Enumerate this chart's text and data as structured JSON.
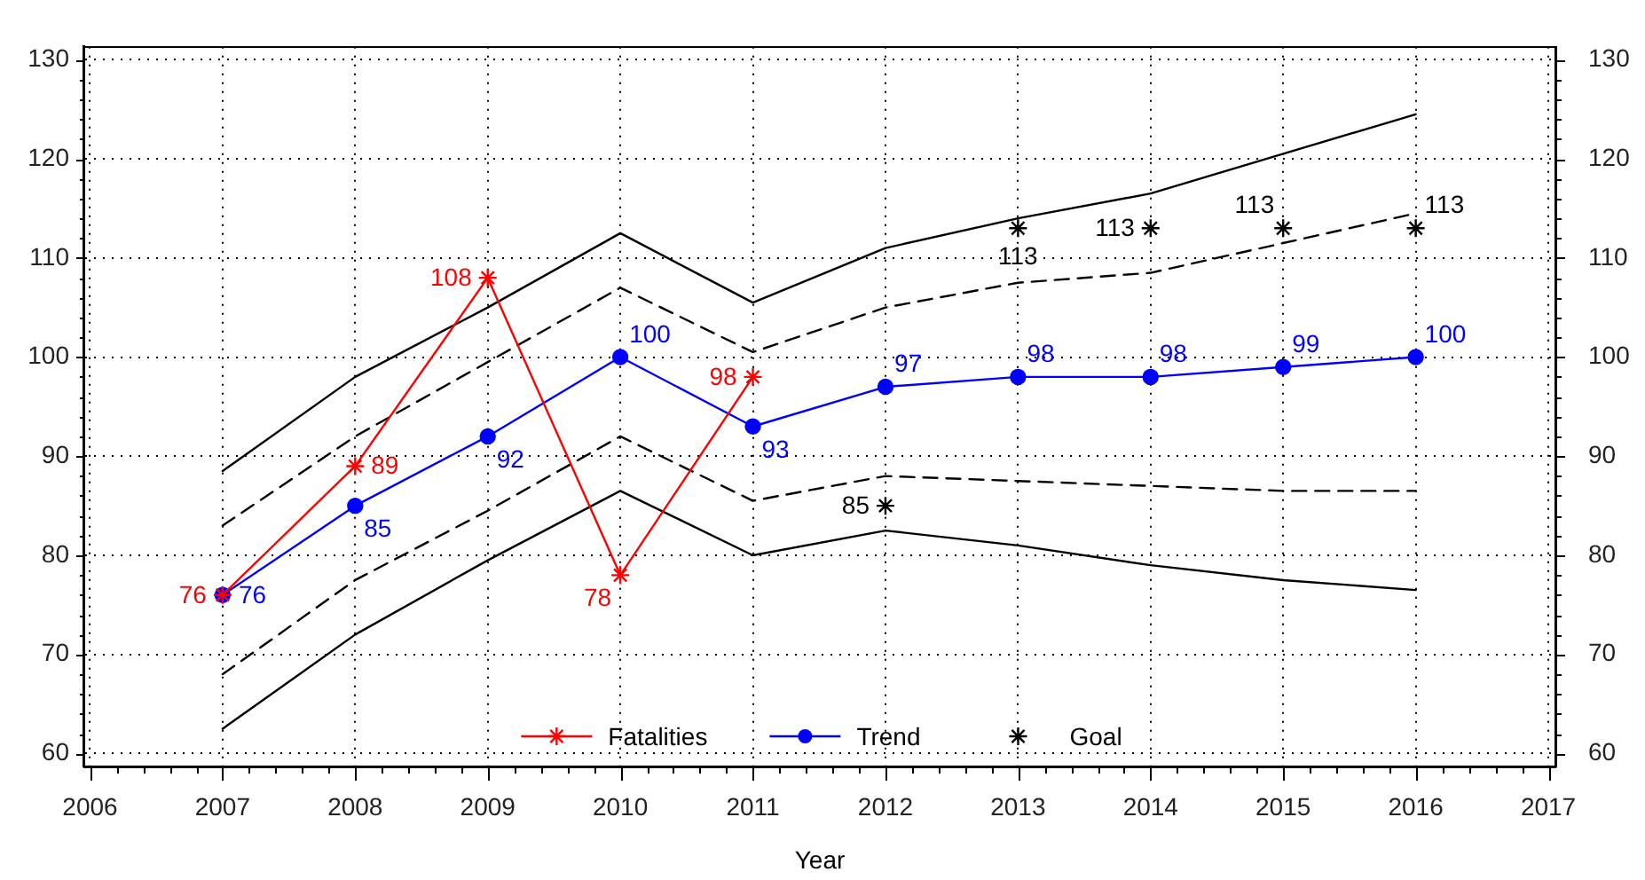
{
  "chart_data": {
    "type": "line",
    "xlabel": "Year",
    "xlim": [
      2005.95,
      2017.06
    ],
    "xticks": [
      2006,
      {
        "value": 2006.2,
        "label": null
      },
      {
        "value": 2006.4,
        "label": null
      },
      {
        "value": 2006.6,
        "label": null
      },
      {
        "value": 2006.8,
        "label": null
      },
      2007,
      {
        "value": 2007.2,
        "label": null
      },
      {
        "value": 2007.4,
        "label": null
      },
      {
        "value": 2007.6,
        "label": null
      },
      {
        "value": 2007.8,
        "label": null
      },
      2008,
      {
        "value": 2008.2,
        "label": null
      },
      {
        "value": 2008.4,
        "label": null
      },
      {
        "value": 2008.6,
        "label": null
      },
      {
        "value": 2008.8,
        "label": null
      },
      2009,
      {
        "value": 2009.2,
        "label": null
      },
      {
        "value": 2009.4,
        "label": null
      },
      {
        "value": 2009.6,
        "label": null
      },
      {
        "value": 2009.8,
        "label": null
      },
      2010,
      {
        "value": 2010.2,
        "label": null
      },
      {
        "value": 2010.4,
        "label": null
      },
      {
        "value": 2010.6,
        "label": null
      },
      {
        "value": 2010.8,
        "label": null
      },
      2011,
      {
        "value": 2011.2,
        "label": null
      },
      {
        "value": 2011.4,
        "label": null
      },
      {
        "value": 2011.6,
        "label": null
      },
      {
        "value": 2011.8,
        "label": null
      },
      2012,
      {
        "value": 2012.2,
        "label": null
      },
      {
        "value": 2012.4,
        "label": null
      },
      {
        "value": 2012.6,
        "label": null
      },
      {
        "value": 2012.8,
        "label": null
      },
      2013,
      {
        "value": 2013.2,
        "label": null
      },
      {
        "value": 2013.4,
        "label": null
      },
      {
        "value": 2013.6,
        "label": null
      },
      {
        "value": 2013.8,
        "label": null
      },
      2014,
      {
        "value": 2014.2,
        "label": null
      },
      {
        "value": 2014.4,
        "label": null
      },
      {
        "value": 2014.6,
        "label": null
      },
      {
        "value": 2014.8,
        "label": null
      },
      2015,
      {
        "value": 2015.2,
        "label": null
      },
      {
        "value": 2015.4,
        "label": null
      },
      {
        "value": 2015.6,
        "label": null
      },
      {
        "value": 2015.8,
        "label": null
      },
      2016,
      {
        "value": 2016.2,
        "label": null
      },
      {
        "value": 2016.4,
        "label": null
      },
      {
        "value": 2016.6,
        "label": null
      },
      {
        "value": 2016.8,
        "label": null
      },
      2017
    ],
    "ylim": [
      58.7,
      131.3
    ],
    "yticks": [
      60,
      {
        "value": 62,
        "label": null
      },
      {
        "value": 64,
        "label": null
      },
      {
        "value": 66,
        "label": null
      },
      {
        "value": 68,
        "label": null
      },
      70,
      {
        "value": 72,
        "label": null
      },
      {
        "value": 74,
        "label": null
      },
      {
        "value": 76,
        "label": null
      },
      {
        "value": 78,
        "label": null
      },
      80,
      {
        "value": 82,
        "label": null
      },
      {
        "value": 84,
        "label": null
      },
      {
        "value": 86,
        "label": null
      },
      {
        "value": 88,
        "label": null
      },
      90,
      {
        "value": 92,
        "label": null
      },
      {
        "value": 94,
        "label": null
      },
      {
        "value": 96,
        "label": null
      },
      {
        "value": 98,
        "label": null
      },
      100,
      {
        "value": 102,
        "label": null
      },
      {
        "value": 104,
        "label": null
      },
      {
        "value": 106,
        "label": null
      },
      {
        "value": 108,
        "label": null
      },
      110,
      {
        "value": 112,
        "label": null
      },
      {
        "value": 114,
        "label": null
      },
      {
        "value": 116,
        "label": null
      },
      {
        "value": 118,
        "label": null
      },
      120,
      {
        "value": 122,
        "label": null
      },
      {
        "value": 124,
        "label": null
      },
      {
        "value": 126,
        "label": null
      },
      {
        "value": 128,
        "label": null
      },
      130
    ],
    "y2lim": [
      58.7,
      131.3
    ],
    "y2ticks": [
      60,
      {
        "value": 62,
        "label": null
      },
      {
        "value": 64,
        "label": null
      },
      {
        "value": 66,
        "label": null
      },
      {
        "value": 68,
        "label": null
      },
      70,
      {
        "value": 72,
        "label": null
      },
      {
        "value": 74,
        "label": null
      },
      {
        "value": 76,
        "label": null
      },
      {
        "value": 78,
        "label": null
      },
      80,
      {
        "value": 82,
        "label": null
      },
      {
        "value": 84,
        "label": null
      },
      {
        "value": 86,
        "label": null
      },
      {
        "value": 88,
        "label": null
      },
      90,
      {
        "value": 92,
        "label": null
      },
      {
        "value": 94,
        "label": null
      },
      {
        "value": 96,
        "label": null
      },
      {
        "value": 98,
        "label": null
      },
      100,
      {
        "value": 102,
        "label": null
      },
      {
        "value": 104,
        "label": null
      },
      {
        "value": 106,
        "label": null
      },
      {
        "value": 108,
        "label": null
      },
      110,
      {
        "value": 112,
        "label": null
      },
      {
        "value": 114,
        "label": null
      },
      {
        "value": 116,
        "label": null
      },
      {
        "value": 118,
        "label": null
      },
      120,
      {
        "value": 122,
        "label": null
      },
      {
        "value": 124,
        "label": null
      },
      {
        "value": 126,
        "label": null
      },
      {
        "value": 128,
        "label": null
      },
      130
    ],
    "grid": true,
    "legend": "bottom",
    "series": [
      {
        "name": "Fatalities",
        "color": "#ff0000",
        "marker": "cross",
        "line_style": "solid",
        "x": [
          2007,
          2008,
          2009,
          2010,
          2011
        ],
        "values": [
          76,
          89,
          108,
          78,
          98
        ],
        "value_labels": [
          "76",
          "89",
          "108",
          "78",
          "98"
        ]
      },
      {
        "name": "Trend",
        "color": "#0000ff",
        "marker": "circle",
        "line_style": "solid",
        "x": [
          2007,
          2008,
          2009,
          2010,
          2011,
          2012,
          2013,
          2014,
          2015,
          2016
        ],
        "values": [
          76,
          85,
          92,
          100,
          93,
          97,
          98,
          98,
          99,
          100
        ],
        "value_labels": [
          "76",
          "85",
          "92",
          "100",
          "93",
          "97",
          "98",
          "98",
          "99",
          "100"
        ]
      },
      {
        "name": "Goal",
        "type": "scatter",
        "color": "#000000",
        "marker": "cross",
        "x": [
          2012,
          2013,
          2014,
          2015,
          2016
        ],
        "values": [
          85,
          113,
          113,
          113,
          113
        ],
        "value_labels": [
          "85",
          "113",
          "113",
          "113",
          "113"
        ]
      },
      {
        "color": "#000000",
        "marker": "none",
        "line_style": "solid",
        "x": [
          2007,
          2008,
          2009,
          2010,
          2011,
          2012,
          2013,
          2014,
          2015,
          2016
        ],
        "values": [
          88.5,
          98,
          105,
          112.5,
          105.5,
          111,
          114,
          116.5,
          120.5,
          124.5
        ]
      },
      {
        "color": "#000000",
        "marker": "none",
        "line_style": "dashed",
        "x": [
          2007,
          2008,
          2009,
          2010,
          2011,
          2012,
          2013,
          2014,
          2015,
          2016
        ],
        "values": [
          83,
          92,
          99.5,
          107,
          100.5,
          105,
          107.5,
          108.5,
          111.5,
          114.5
        ]
      },
      {
        "color": "#000000",
        "marker": "none",
        "line_style": "dashed",
        "x": [
          2007,
          2008,
          2009,
          2010,
          2011,
          2012,
          2013,
          2014,
          2015,
          2016
        ],
        "values": [
          68,
          77.5,
          84.5,
          92,
          85.5,
          88,
          87.5,
          87,
          86.5,
          86.5
        ]
      },
      {
        "color": "#000000",
        "marker": "none",
        "line_style": "solid",
        "x": [
          2007,
          2008,
          2009,
          2010,
          2011,
          2012,
          2013,
          2014,
          2015,
          2016
        ],
        "values": [
          62.5,
          72,
          79.5,
          86.5,
          80,
          82.5,
          81,
          79,
          77.5,
          76.5
        ]
      }
    ]
  }
}
